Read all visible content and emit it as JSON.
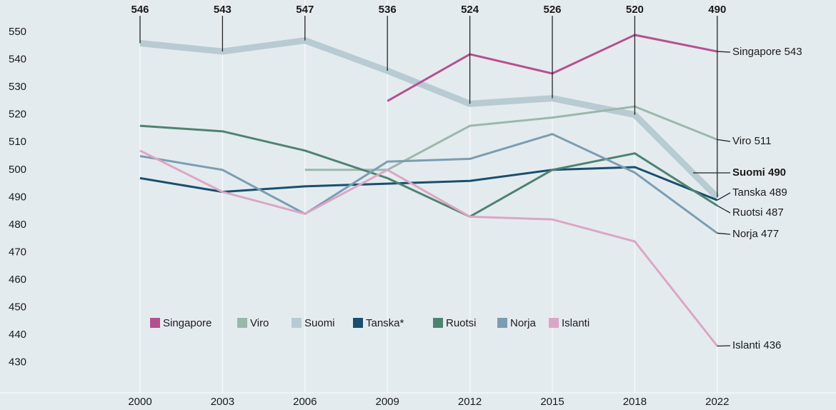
{
  "chart_data": {
    "type": "line",
    "categories": [
      "2000",
      "2003",
      "2006",
      "2009",
      "2012",
      "2015",
      "2018",
      "2022"
    ],
    "ylim": [
      419,
      561.7
    ],
    "yticks": [
      430,
      440,
      450,
      460,
      470,
      480,
      490,
      500,
      510,
      520,
      530,
      540,
      550
    ],
    "series": [
      {
        "name": "Singapore",
        "color": "#b5508f",
        "values": [
          null,
          null,
          null,
          525,
          542,
          535,
          549,
          543
        ],
        "end_label": "Singapore 543"
      },
      {
        "name": "Viro",
        "color": "#9bb8aa",
        "values": [
          null,
          null,
          500,
          500,
          516,
          519,
          523,
          511
        ],
        "end_label": "Viro 511"
      },
      {
        "name": "Suomi",
        "color": "#b8cbd3",
        "values": [
          546,
          543,
          547,
          536,
          524,
          526,
          520,
          490
        ],
        "end_label": "Suomi 490"
      },
      {
        "name": "Tanska*",
        "color": "#1a4f6e",
        "values": [
          497,
          492,
          494,
          495,
          496,
          500,
          501,
          489
        ],
        "end_label": "Tanska 489"
      },
      {
        "name": "Ruotsi",
        "color": "#4e8370",
        "values": [
          516,
          514,
          507,
          497,
          483,
          500,
          506,
          487
        ],
        "end_label": "Ruotsi 487"
      },
      {
        "name": "Norja",
        "color": "#7b9db3",
        "values": [
          505,
          500,
          484,
          503,
          504,
          513,
          499,
          477
        ],
        "end_label": "Norja 477"
      },
      {
        "name": "Islanti",
        "color": "#dba6c6",
        "values": [
          507,
          492,
          484,
          500,
          483,
          482,
          474,
          436
        ],
        "end_label": "Islanti 436"
      }
    ]
  }
}
